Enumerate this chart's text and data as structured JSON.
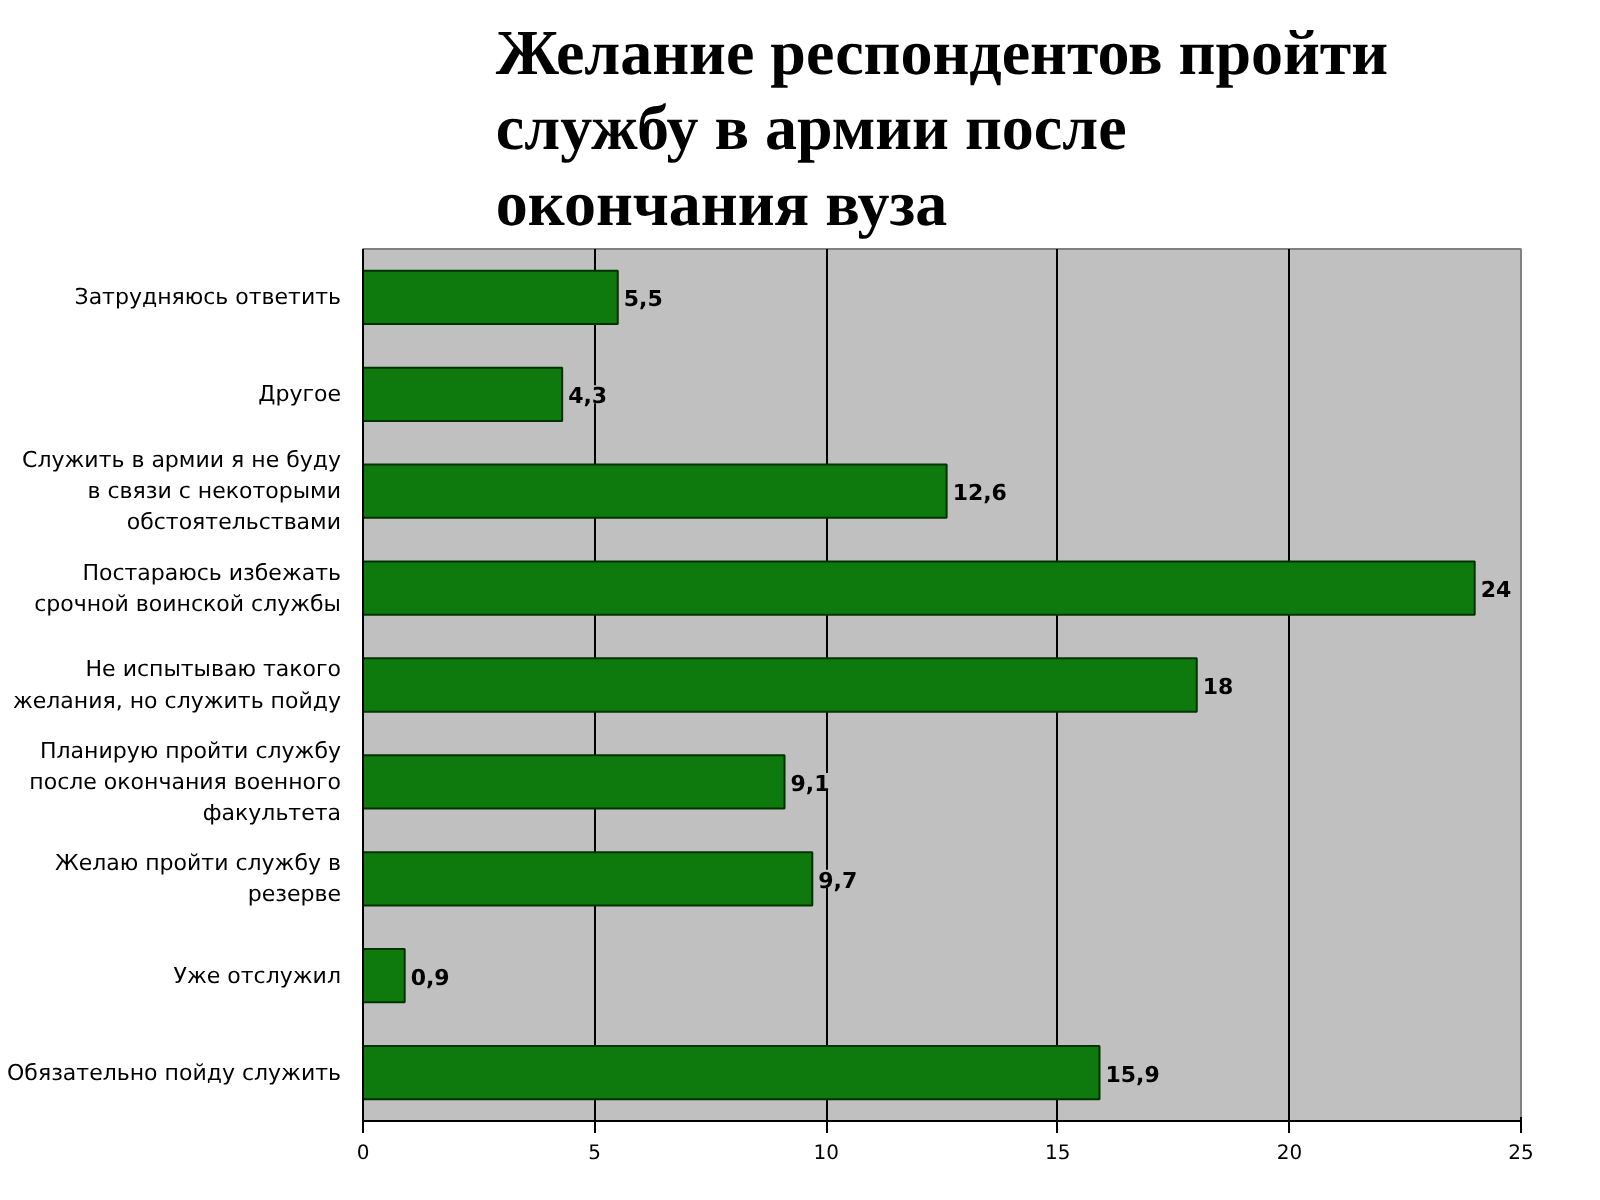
{
  "chart_data": {
    "type": "bar",
    "orientation": "horizontal",
    "title": "Желание респондентов пройти службу в армии после окончания вуза",
    "categories": [
      "Затрудняюсь ответить",
      "Другое",
      "Служить в армии я не буду в связи с некоторыми обстоятельствами",
      "Постараюсь избежать срочной воинской службы",
      "Не испытываю такого желания, но служить пойду",
      "Планирую пройти службу после окончания военного факультета",
      "Желаю пройти службу в резерве",
      "Уже отслужил",
      "Обязательно пойду служить"
    ],
    "values": [
      5.5,
      4.3,
      12.6,
      24,
      18,
      9.1,
      9.7,
      0.9,
      15.9
    ],
    "value_labels": [
      "5,5",
      "4,3",
      "12,6",
      "24",
      "18",
      "9,1",
      "9,7",
      "0,9",
      "15,9"
    ],
    "color": "#0e7a0e",
    "xlim": [
      0,
      25
    ],
    "xticks": [
      0,
      5,
      10,
      15,
      20,
      25
    ],
    "grid": "x"
  }
}
